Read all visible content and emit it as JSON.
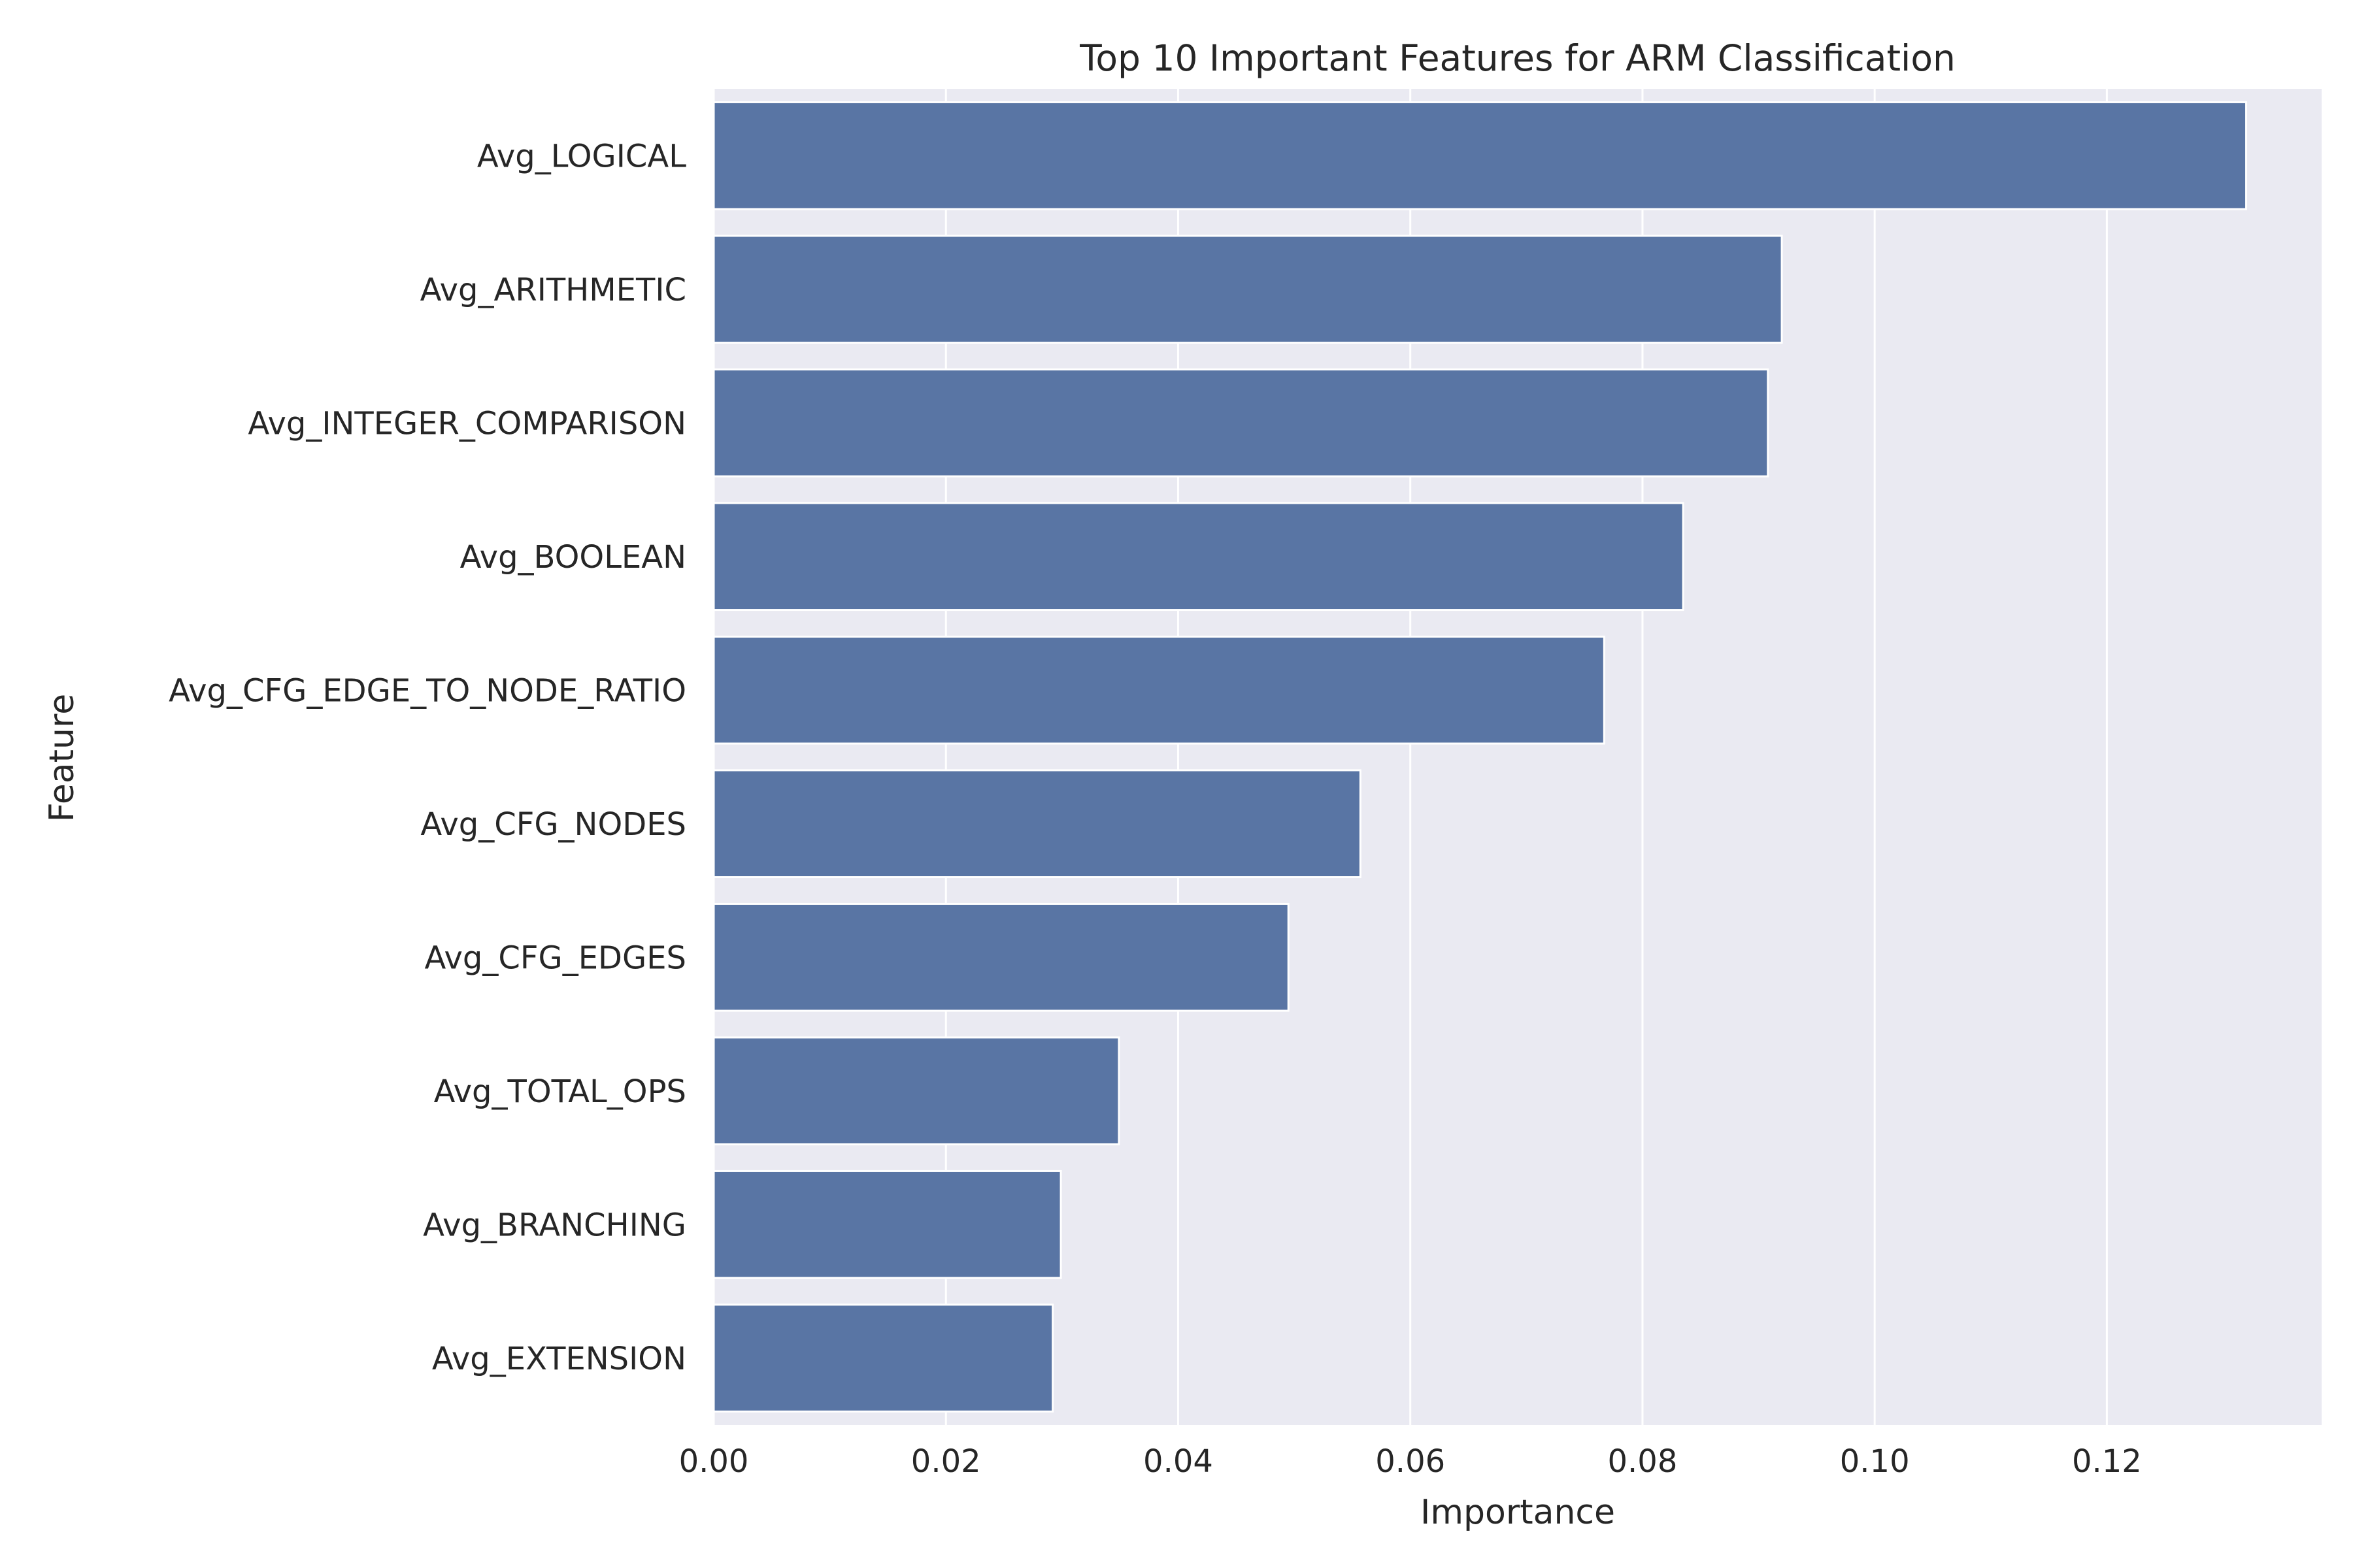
{
  "chart_data": {
    "type": "bar",
    "orientation": "horizontal",
    "title": "Top 10 Important Features for ARM Classification",
    "xlabel": "Importance",
    "ylabel": "Feature",
    "categories": [
      "Avg_LOGICAL",
      "Avg_ARITHMETIC",
      "Avg_INTEGER_COMPARISON",
      "Avg_BOOLEAN",
      "Avg_CFG_EDGE_TO_NODE_RATIO",
      "Avg_CFG_NODES",
      "Avg_CFG_EDGES",
      "Avg_TOTAL_OPS",
      "Avg_BRANCHING",
      "Avg_EXTENSION"
    ],
    "values": [
      0.132,
      0.092,
      0.0908,
      0.0835,
      0.0767,
      0.0557,
      0.0495,
      0.0349,
      0.0299,
      0.0292
    ],
    "xlim": [
      0,
      0.1385
    ],
    "xticks": [
      0.0,
      0.02,
      0.04,
      0.06,
      0.08,
      0.1,
      0.12
    ],
    "xtick_labels": [
      "0.00",
      "0.02",
      "0.04",
      "0.06",
      "0.08",
      "0.10",
      "0.12"
    ],
    "grid": true,
    "bar_color": "#5975a4",
    "background_color": "#eaeaf2"
  }
}
